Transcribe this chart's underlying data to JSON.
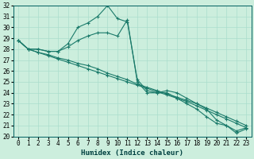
{
  "xlabel": "Humidex (Indice chaleur)",
  "bg_color": "#cceedd",
  "grid_color": "#aaddcc",
  "line_color": "#1a7a6a",
  "xlim": [
    -0.5,
    23.5
  ],
  "ylim": [
    20,
    32
  ],
  "xticks": [
    0,
    1,
    2,
    3,
    4,
    5,
    6,
    7,
    8,
    9,
    10,
    11,
    12,
    13,
    14,
    15,
    16,
    17,
    18,
    19,
    20,
    21,
    22,
    23
  ],
  "yticks": [
    20,
    21,
    22,
    23,
    24,
    25,
    26,
    27,
    28,
    29,
    30,
    31,
    32
  ],
  "line1_x": [
    0,
    1,
    2,
    3,
    4,
    5,
    6,
    7,
    8,
    9,
    10,
    11,
    12,
    13,
    14,
    15,
    16,
    17,
    18,
    19,
    20,
    21,
    22,
    23
  ],
  "line1_y": [
    28.8,
    28.0,
    28.0,
    27.8,
    27.8,
    28.5,
    30.0,
    30.4,
    31.0,
    32.0,
    30.8,
    30.5,
    25.2,
    24.2,
    24.0,
    24.2,
    24.0,
    23.5,
    23.0,
    22.5,
    21.5,
    21.0,
    20.5,
    20.8
  ],
  "line2_x": [
    0,
    1,
    2,
    3,
    4,
    5,
    6,
    7,
    8,
    9,
    10,
    11,
    12,
    13,
    14,
    15,
    16,
    17,
    18,
    19,
    20,
    21,
    22,
    23
  ],
  "line2_y": [
    28.8,
    28.0,
    28.0,
    27.8,
    27.8,
    28.2,
    28.8,
    29.2,
    29.5,
    29.5,
    29.2,
    30.7,
    25.0,
    24.0,
    24.0,
    24.0,
    23.5,
    23.0,
    22.5,
    21.8,
    21.2,
    21.0,
    20.3,
    20.7
  ],
  "line3_x": [
    0,
    1,
    2,
    3,
    4,
    5,
    6,
    7,
    8,
    9,
    10,
    11,
    12,
    13,
    14,
    15,
    16,
    17,
    18,
    19,
    20,
    21,
    22,
    23
  ],
  "line3_y": [
    28.8,
    28.0,
    27.7,
    27.5,
    27.2,
    27.0,
    26.7,
    26.5,
    26.2,
    25.8,
    25.5,
    25.2,
    24.8,
    24.5,
    24.2,
    23.9,
    23.6,
    23.3,
    23.0,
    22.6,
    22.2,
    21.8,
    21.4,
    21.0
  ],
  "line4_x": [
    0,
    1,
    2,
    3,
    4,
    5,
    6,
    7,
    8,
    9,
    10,
    11,
    12,
    13,
    14,
    15,
    16,
    17,
    18,
    19,
    20,
    21,
    22,
    23
  ],
  "line4_y": [
    28.8,
    28.0,
    27.7,
    27.4,
    27.1,
    26.8,
    26.5,
    26.2,
    25.9,
    25.6,
    25.3,
    25.0,
    24.7,
    24.4,
    24.1,
    23.8,
    23.5,
    23.2,
    22.8,
    22.4,
    22.0,
    21.6,
    21.2,
    20.8
  ]
}
